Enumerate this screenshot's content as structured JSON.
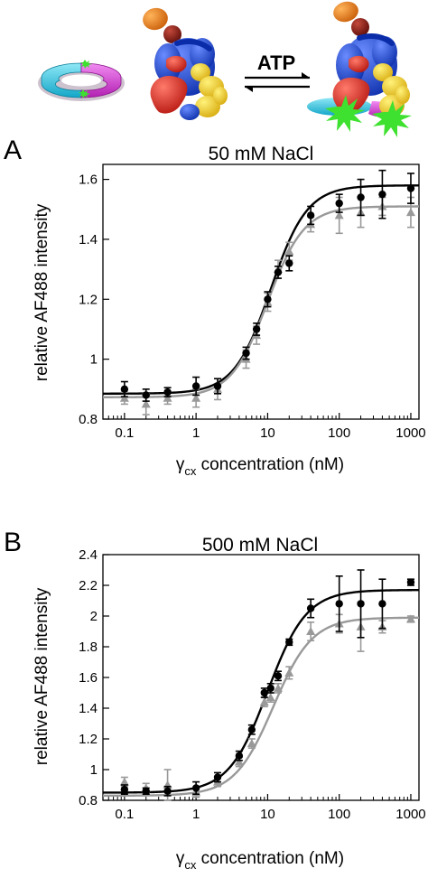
{
  "schematic": {
    "arrow_label": "ATP",
    "colors": {
      "ring_cyan": "#2ec4e0",
      "ring_magenta": "#d62fd6",
      "fluor_green": "#3ee12f",
      "blue": "#1846d8",
      "red": "#e3261e",
      "yellow": "#f6d225",
      "orange": "#ee7a10",
      "darkred": "#8a1510"
    }
  },
  "chart_data": [
    {
      "panel": "A",
      "type": "scatter",
      "title": "50 mM NaCl",
      "xlabel_main": "γ",
      "xlabel_sub": "cx",
      "xlabel_rest": " concentration (nM)",
      "ylabel": "relative AF488 intensity",
      "xscale": "log",
      "xlim": [
        0.05,
        1300
      ],
      "ylim": [
        0.8,
        1.65
      ],
      "xticks": [
        {
          "v": 0.1,
          "label": "0.1"
        },
        {
          "v": 1,
          "label": "1"
        },
        {
          "v": 10,
          "label": "10"
        },
        {
          "v": 100,
          "label": "100"
        },
        {
          "v": 1000,
          "label": "1000"
        }
      ],
      "yticks": [
        {
          "v": 0.8,
          "label": "0.8"
        },
        {
          "v": 1.0,
          "label": "1"
        },
        {
          "v": 1.2,
          "label": "1.2"
        },
        {
          "v": 1.4,
          "label": "1.4"
        },
        {
          "v": 1.6,
          "label": "1.6"
        }
      ],
      "grid": false,
      "series": [
        {
          "color": "#000000",
          "marker": "circle",
          "x": [
            0.1,
            0.2,
            0.4,
            1,
            2,
            5,
            7,
            10,
            14,
            20,
            40,
            100,
            200,
            400,
            1000
          ],
          "y": [
            0.9,
            0.88,
            0.89,
            0.91,
            0.91,
            1.02,
            1.1,
            1.2,
            1.29,
            1.32,
            1.48,
            1.52,
            1.54,
            1.55,
            1.57
          ],
          "err": [
            0.025,
            0.02,
            0.015,
            0.03,
            0.025,
            0.02,
            0.02,
            0.025,
            0.02,
            0.025,
            0.03,
            0.03,
            0.06,
            0.08,
            0.05
          ],
          "fit": {
            "bottom": 0.885,
            "top": 1.58,
            "ec50": 11,
            "hill": 1.7
          }
        },
        {
          "color": "#999999",
          "marker": "triangle",
          "x": [
            0.1,
            0.2,
            0.4,
            1,
            2,
            5,
            7,
            10,
            14,
            20,
            40,
            100,
            200,
            400,
            1000
          ],
          "y": [
            0.87,
            0.85,
            0.87,
            0.87,
            0.9,
            1.0,
            1.08,
            1.19,
            1.3,
            1.36,
            1.45,
            1.48,
            1.49,
            1.51,
            1.49
          ],
          "err": [
            0.02,
            0.035,
            0.02,
            0.03,
            0.035,
            0.03,
            0.03,
            0.03,
            0.03,
            0.03,
            0.025,
            0.06,
            0.05,
            0.03,
            0.05
          ],
          "fit": {
            "bottom": 0.873,
            "top": 1.51,
            "ec50": 10,
            "hill": 1.7
          }
        }
      ]
    },
    {
      "panel": "B",
      "type": "scatter",
      "title": "500 mM NaCl",
      "xlabel_main": "γ",
      "xlabel_sub": "cx",
      "xlabel_rest": " concentration (nM)",
      "ylabel": "relative AF488 intensity",
      "xscale": "log",
      "xlim": [
        0.05,
        1300
      ],
      "ylim": [
        0.8,
        2.4
      ],
      "xticks": [
        {
          "v": 0.1,
          "label": "0.1"
        },
        {
          "v": 1,
          "label": "1"
        },
        {
          "v": 10,
          "label": "10"
        },
        {
          "v": 100,
          "label": "100"
        },
        {
          "v": 1000,
          "label": "1000"
        }
      ],
      "yticks": [
        {
          "v": 0.8,
          "label": "0.8"
        },
        {
          "v": 1.0,
          "label": "1"
        },
        {
          "v": 1.2,
          "label": "1.2"
        },
        {
          "v": 1.4,
          "label": "1.4"
        },
        {
          "v": 1.6,
          "label": "1.6"
        },
        {
          "v": 1.8,
          "label": "1.8"
        },
        {
          "v": 2.0,
          "label": "2"
        },
        {
          "v": 2.2,
          "label": "2.2"
        },
        {
          "v": 2.4,
          "label": "2.4"
        }
      ],
      "grid": false,
      "series": [
        {
          "color": "#000000",
          "marker": "circle",
          "x": [
            0.1,
            0.2,
            0.4,
            1,
            2,
            4,
            6,
            9,
            11,
            14,
            20,
            40,
            100,
            200,
            400,
            1000
          ],
          "y": [
            0.87,
            0.86,
            0.86,
            0.88,
            0.95,
            1.09,
            1.26,
            1.5,
            1.53,
            1.61,
            1.83,
            2.05,
            2.08,
            2.08,
            2.08,
            2.22
          ],
          "err": [
            0.03,
            0.02,
            0.03,
            0.04,
            0.03,
            0.03,
            0.03,
            0.03,
            0.03,
            0.03,
            0.02,
            0.06,
            0.18,
            0.22,
            0.16,
            0.02
          ],
          "fit": {
            "bottom": 0.85,
            "top": 2.17,
            "ec50": 10,
            "hill": 1.6
          }
        },
        {
          "color": "#999999",
          "marker": "triangle",
          "x": [
            0.1,
            0.2,
            0.4,
            1,
            2,
            4,
            6,
            9,
            11,
            14,
            20,
            40,
            100,
            200,
            400,
            1000
          ],
          "y": [
            0.92,
            0.88,
            0.9,
            0.85,
            0.92,
            1.05,
            1.17,
            1.44,
            1.47,
            1.53,
            1.63,
            1.9,
            1.95,
            1.93,
            1.93,
            1.98
          ],
          "err": [
            0.03,
            0.03,
            0.1,
            0.03,
            0.03,
            0.03,
            0.03,
            0.03,
            0.03,
            0.03,
            0.04,
            0.06,
            0.06,
            0.16,
            0.04,
            0.02
          ],
          "fit": {
            "bottom": 0.83,
            "top": 1.99,
            "ec50": 12,
            "hill": 1.6
          }
        }
      ]
    }
  ]
}
